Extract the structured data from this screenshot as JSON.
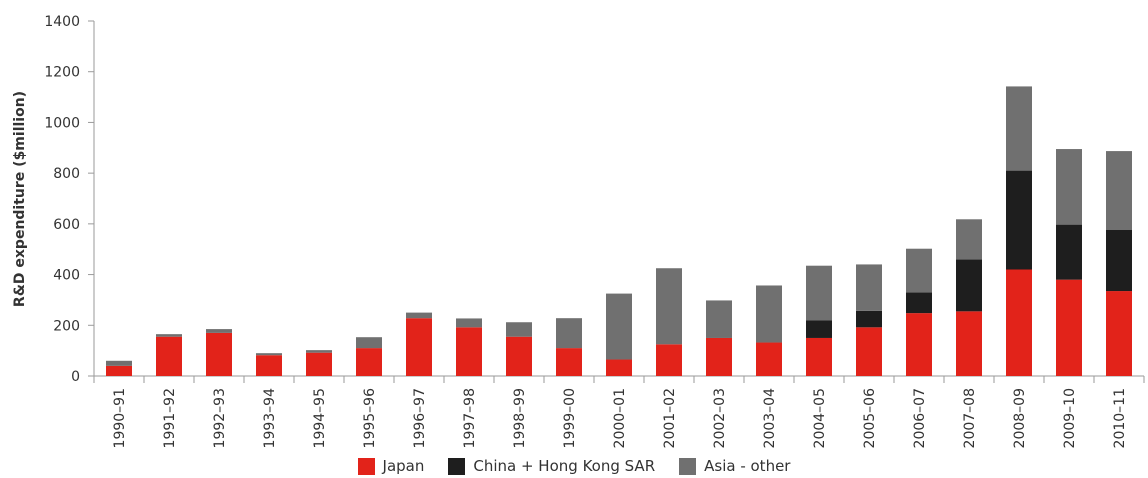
{
  "chart_data": {
    "type": "bar",
    "stacked": true,
    "ylabel": "R&D expenditure ($million)",
    "xlabel": "",
    "ylim": [
      0,
      1400
    ],
    "yticks": [
      0,
      200,
      400,
      600,
      800,
      1000,
      1200,
      1400
    ],
    "grid": false,
    "legend_position": "bottom",
    "categories": [
      "1990–91",
      "1991–92",
      "1992–93",
      "1993–94",
      "1994–95",
      "1995–96",
      "1996–97",
      "1997–98",
      "1998–99",
      "1999–00",
      "2000–01",
      "2001–02",
      "2002–03",
      "2003–04",
      "2004–05",
      "2005–06",
      "2006–07",
      "2007–08",
      "2008–09",
      "2009–10",
      "2010–11"
    ],
    "series": [
      {
        "name": "Japan",
        "color": "#e2231a",
        "values": [
          40,
          155,
          170,
          82,
          92,
          110,
          228,
          192,
          155,
          110,
          65,
          125,
          150,
          132,
          150,
          192,
          248,
          255,
          420,
          380,
          335
        ]
      },
      {
        "name": "China + Hong Kong SAR",
        "color": "#1e1e1e",
        "values": [
          0,
          0,
          0,
          0,
          0,
          0,
          0,
          0,
          0,
          0,
          0,
          0,
          0,
          0,
          70,
          65,
          82,
          205,
          390,
          217,
          242
        ]
      },
      {
        "name": "Asia - other",
        "color": "#707070",
        "values": [
          20,
          10,
          15,
          8,
          10,
          43,
          22,
          35,
          57,
          118,
          260,
          300,
          148,
          225,
          215,
          183,
          172,
          158,
          332,
          298,
          310
        ]
      }
    ]
  }
}
